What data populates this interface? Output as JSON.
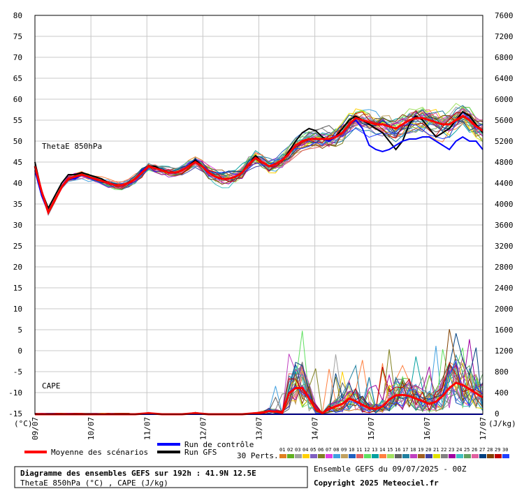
{
  "chart_data": {
    "type": "line",
    "title": "Diagramme des ensembles GEFS sur 192h : 41.9N 12.5E",
    "subtitle": "ThetaE 850hPa (°C) , CAPE (J/kg)",
    "left_axis": {
      "unit": "(°C)",
      "ticks": [
        80,
        75,
        70,
        65,
        60,
        55,
        50,
        45,
        40,
        35,
        30,
        25,
        20,
        15,
        10,
        5,
        0,
        -5,
        -10,
        -15
      ]
    },
    "right_axis": {
      "unit": "(J/kg)",
      "ticks": [
        7600,
        7200,
        6800,
        6400,
        6000,
        5600,
        5200,
        4800,
        4400,
        4000,
        3600,
        3200,
        2800,
        2400,
        2000,
        1600,
        1200,
        800,
        400,
        0
      ]
    },
    "x_ticks": [
      "09/07",
      "10/07",
      "11/07",
      "12/07",
      "13/07",
      "14/07",
      "15/07",
      "16/07",
      "17/07"
    ],
    "panel_labels": {
      "thetae": "ThetaE 850hPa",
      "cape": "CAPE"
    },
    "thetae_mean": [
      44,
      38,
      33,
      36,
      39,
      41,
      41.5,
      42,
      41.5,
      41,
      40.5,
      40,
      39.5,
      39.5,
      40,
      41,
      42.5,
      44,
      43.5,
      43,
      42.5,
      42.5,
      43,
      44,
      45,
      44,
      42.5,
      41.5,
      41,
      41,
      41.5,
      42.5,
      44.5,
      46,
      45,
      44,
      44.5,
      45.5,
      47,
      49,
      50,
      50.5,
      50.5,
      50.5,
      50.5,
      51,
      52,
      54,
      55.5,
      55,
      54.5,
      54,
      54,
      53.5,
      53,
      54,
      55,
      55.5,
      55.5,
      55,
      54.5,
      54,
      54,
      55,
      56,
      55,
      53.5,
      52.5
    ],
    "thetae_control": [
      43,
      37,
      33,
      36,
      39,
      41,
      41,
      42,
      41.5,
      41,
      40.5,
      40,
      39.5,
      39.5,
      40,
      41,
      43,
      44,
      43.5,
      43,
      42.5,
      42.5,
      43,
      44,
      45,
      44,
      42.5,
      41.5,
      41,
      41,
      41.5,
      42.5,
      44.5,
      46,
      45,
      44,
      44.5,
      45.5,
      47,
      49,
      50,
      50.5,
      50.5,
      50.5,
      50,
      51,
      52,
      54,
      55,
      53,
      49,
      48,
      47.5,
      48,
      49,
      50,
      50.5,
      50.5,
      51,
      51,
      50,
      49,
      48,
      50,
      51,
      50,
      50,
      48
    ],
    "thetae_gfs": [
      45,
      38,
      34,
      37,
      40,
      42,
      42,
      42.5,
      42,
      41.5,
      41,
      40,
      39.5,
      39.5,
      40,
      41,
      43,
      44,
      44,
      43,
      42.5,
      42.5,
      43,
      44,
      45.5,
      44,
      42.5,
      41.5,
      41,
      41,
      41.5,
      42.5,
      44.5,
      46.5,
      45,
      44,
      44.5,
      45.5,
      47.5,
      50,
      52,
      53,
      52.5,
      51,
      50,
      51,
      53,
      55,
      56,
      55,
      54,
      53,
      52,
      50,
      48,
      50,
      54,
      56,
      55,
      53,
      51,
      52,
      53,
      55,
      57,
      56,
      54,
      52
    ],
    "cape_mean": [
      0,
      0,
      0,
      0,
      0,
      0,
      0,
      0,
      0,
      0,
      0,
      0,
      0,
      0,
      0,
      0,
      10,
      20,
      10,
      0,
      0,
      0,
      0,
      10,
      20,
      10,
      0,
      0,
      0,
      0,
      0,
      0,
      10,
      20,
      30,
      60,
      50,
      30,
      400,
      500,
      500,
      300,
      100,
      20,
      100,
      150,
      200,
      300,
      250,
      180,
      120,
      100,
      150,
      280,
      360,
      370,
      350,
      300,
      250,
      200,
      240,
      350,
      500,
      600,
      560,
      480,
      400,
      320
    ],
    "cape_control": [
      0,
      0,
      0,
      0,
      0,
      0,
      0,
      0,
      0,
      0,
      0,
      0,
      0,
      0,
      0,
      0,
      0,
      0,
      0,
      0,
      0,
      0,
      0,
      0,
      0,
      0,
      0,
      0,
      0,
      0,
      0,
      0,
      0,
      0,
      0,
      0,
      0,
      0,
      0,
      0,
      0,
      0,
      0,
      0,
      0,
      0,
      0,
      0,
      0,
      0,
      0,
      0,
      0,
      0,
      0,
      0,
      0,
      0,
      0,
      0,
      0,
      0,
      0,
      0,
      0,
      0,
      0,
      0
    ],
    "cape_gfs": [
      0,
      0,
      0,
      0,
      0,
      0,
      0,
      0,
      0,
      0,
      0,
      0,
      0,
      0,
      0,
      0,
      0,
      0,
      0,
      0,
      0,
      0,
      0,
      0,
      0,
      0,
      0,
      0,
      0,
      0,
      0,
      0,
      0,
      0,
      0,
      0,
      0,
      0,
      0,
      0,
      0,
      0,
      0,
      0,
      0,
      0,
      0,
      0,
      0,
      0,
      0,
      0,
      0,
      0,
      0,
      0,
      0,
      0,
      0,
      0,
      0,
      0,
      0,
      0,
      0,
      0,
      0,
      0
    ],
    "members": 30,
    "member_labels": [
      "01",
      "02",
      "03",
      "04",
      "05",
      "06",
      "07",
      "08",
      "09",
      "10",
      "11",
      "12",
      "13",
      "14",
      "15",
      "16",
      "17",
      "18",
      "19",
      "20",
      "21",
      "22",
      "23",
      "24",
      "25",
      "26",
      "27",
      "28",
      "29",
      "30"
    ],
    "member_colors": [
      "#e08020",
      "#60b020",
      "#a0a0a0",
      "#ffd000",
      "#8060c0",
      "#808020",
      "#e040e0",
      "#40a0e0",
      "#c0a060",
      "#2060c0",
      "#e06060",
      "#60e060",
      "#00a0a0",
      "#ff8040",
      "#a0e060",
      "#606060",
      "#2080a0",
      "#c040c0",
      "#a06020",
      "#4040a0",
      "#e0e000",
      "#808080",
      "#a000a0",
      "#40c0c0",
      "#60a060",
      "#e060a0",
      "#004080",
      "#804000",
      "#c00000",
      "#2040ff"
    ]
  },
  "legend": {
    "mean_label": "Moyenne des scénarios",
    "control_label": "Run de contrôle",
    "gfs_label": "Run GFS",
    "perts_label": "30 Perts.",
    "mean_color": "#ff0000",
    "control_color": "#0000ff",
    "gfs_color": "#000000"
  },
  "footer": {
    "title": "Diagramme des ensembles GEFS sur 192h : 41.9N 12.5E",
    "subtitle": "ThetaE 850hPa (°C) , CAPE (J/kg)",
    "run_info": "Ensemble GEFS du 09/07/2025 - 00Z",
    "copyright": "Copyright 2025 Meteociel.fr"
  }
}
